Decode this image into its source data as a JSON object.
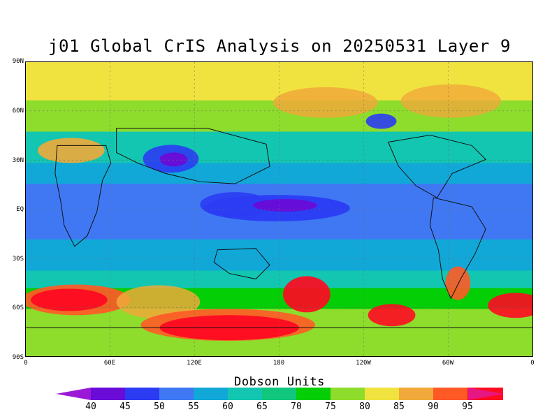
{
  "title": "j01 Global CrIS Analysis on 20250531 Layer 9",
  "colorbar": {
    "title": "Dobson Units",
    "labels": [
      "40",
      "45",
      "50",
      "55",
      "60",
      "65",
      "70",
      "75",
      "80",
      "85",
      "90",
      "95"
    ],
    "colors": [
      "#9b19d6",
      "#6a0bd8",
      "#2b3cf3",
      "#3f78f2",
      "#11a8d8",
      "#12c6b1",
      "#10c77d",
      "#04ce06",
      "#8edc2c",
      "#f0e33f",
      "#f0a93a",
      "#ff5a26",
      "#ff0a22",
      "#e61683"
    ]
  },
  "axes": {
    "latitude_labels": [
      "90N",
      "60N",
      "30N",
      "EQ",
      "30S",
      "60S",
      "90S"
    ],
    "longitude_labels": [
      "0",
      "60E",
      "120E",
      "180",
      "120W",
      "60W",
      "0"
    ]
  }
}
